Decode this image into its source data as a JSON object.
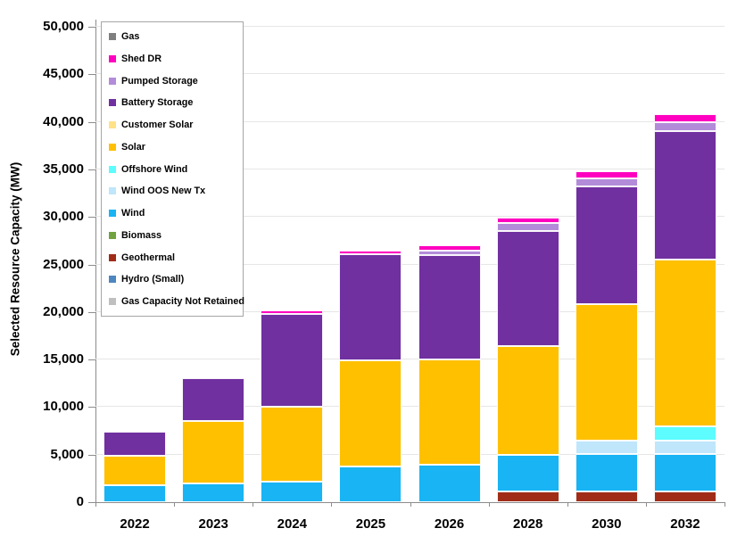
{
  "chart_data": {
    "type": "bar",
    "stacked": true,
    "title": "",
    "xlabel": "",
    "ylabel": "Selected Resource Capacity (MW)",
    "ylim": [
      0,
      50000
    ],
    "ytick_step": 5000,
    "ytick_labels": [
      "0",
      "5,000",
      "10,000",
      "15,000",
      "20,000",
      "25,000",
      "30,000",
      "35,000",
      "40,000",
      "45,000",
      "50,000"
    ],
    "grid": "horizontal",
    "legend_position": "upper-left-inside",
    "stack_order_note": "stacked bottom-to-top in reverse legend order",
    "categories": [
      "2022",
      "2023",
      "2024",
      "2025",
      "2026",
      "2028",
      "2030",
      "2032"
    ],
    "series": [
      {
        "name": "Gas",
        "color": "#7F7F7F",
        "values": [
          0,
          0,
          0,
          0,
          0,
          0,
          0,
          0
        ]
      },
      {
        "name": "Shed DR",
        "color": "#FF00C0",
        "values": [
          0,
          0,
          400,
          450,
          550,
          500,
          680,
          800
        ]
      },
      {
        "name": "Pumped Storage",
        "color": "#B38CD9",
        "values": [
          0,
          0,
          0,
          0,
          450,
          900,
          900,
          1000
        ]
      },
      {
        "name": "Battery Storage",
        "color": "#7030A0",
        "values": [
          2550,
          4500,
          9800,
          11150,
          11000,
          12100,
          12400,
          13500
        ]
      },
      {
        "name": "Customer Solar",
        "color": "#FFE187",
        "values": [
          0,
          0,
          0,
          0,
          0,
          0,
          0,
          0
        ]
      },
      {
        "name": "Solar",
        "color": "#FFC000",
        "values": [
          3100,
          6500,
          7800,
          11100,
          11050,
          11400,
          14300,
          17500
        ]
      },
      {
        "name": "Offshore Wind",
        "color": "#5CFCFF",
        "values": [
          0,
          0,
          0,
          0,
          0,
          0,
          0,
          1500
        ]
      },
      {
        "name": "Wind OOS New Tx",
        "color": "#BFE6FA",
        "values": [
          0,
          0,
          0,
          0,
          0,
          0,
          1400,
          1400
        ]
      },
      {
        "name": "Wind",
        "color": "#18B4F4",
        "values": [
          1800,
          2000,
          2200,
          3800,
          3950,
          3900,
          4000,
          4000
        ]
      },
      {
        "name": "Biomass",
        "color": "#70A33F",
        "values": [
          0,
          0,
          0,
          0,
          0,
          0,
          0,
          0
        ]
      },
      {
        "name": "Geothermal",
        "color": "#A02C18",
        "values": [
          0,
          0,
          0,
          0,
          0,
          1100,
          1100,
          1100
        ]
      },
      {
        "name": "Hydro (Small)",
        "color": "#4E86C0",
        "values": [
          0,
          0,
          0,
          0,
          0,
          0,
          0,
          0
        ]
      },
      {
        "name": "Gas Capacity Not Retained",
        "color": "#BFBFBF",
        "values": [
          0,
          0,
          0,
          0,
          0,
          0,
          0,
          0
        ]
      }
    ]
  }
}
